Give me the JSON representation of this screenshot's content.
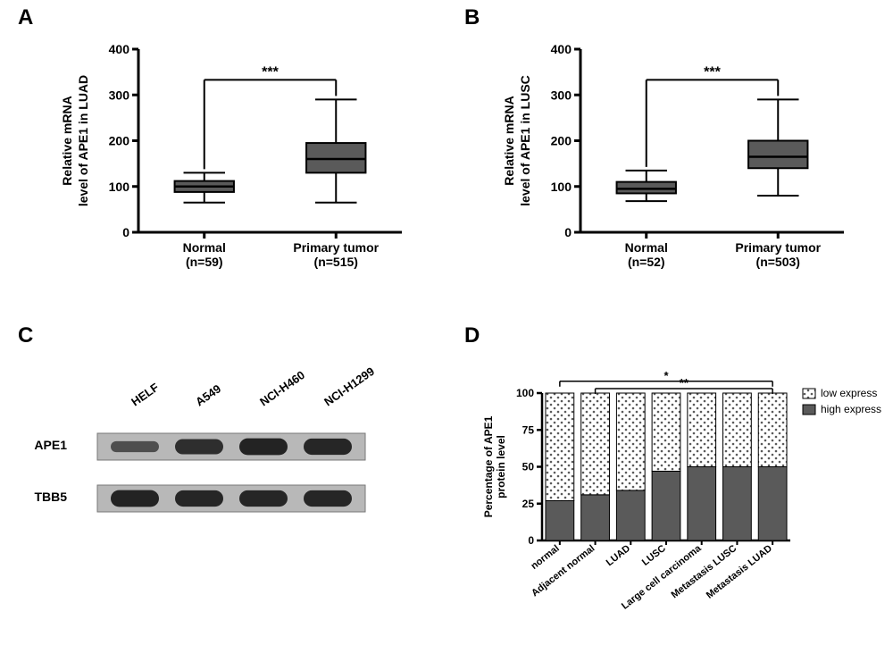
{
  "panel_labels": {
    "A": "A",
    "B": "B",
    "C": "C",
    "D": "D"
  },
  "A": {
    "type": "boxplot",
    "ylabel": "Relative mRNA\nlevel of APE1 in LUAD",
    "ylim": [
      0,
      400
    ],
    "yticks": [
      0,
      100,
      200,
      300,
      400
    ],
    "categories": [
      "Normal\n(n=59)",
      "Primary tumor\n(n=515)"
    ],
    "boxes": [
      {
        "min": 65,
        "q1": 88,
        "median": 100,
        "q3": 112,
        "max": 130,
        "fill": "#5a5a5a"
      },
      {
        "min": 65,
        "q1": 130,
        "median": 160,
        "q3": 195,
        "max": 290,
        "fill": "#5a5a5a"
      }
    ],
    "sig_label": "***",
    "axis_color": "#000000",
    "line_width": 3
  },
  "B": {
    "type": "boxplot",
    "ylabel": "Relative mRNA\nlevel of APE1 in LUSC",
    "ylim": [
      0,
      400
    ],
    "yticks": [
      0,
      100,
      200,
      300,
      400
    ],
    "categories": [
      "Normal\n(n=52)",
      "Primary tumor\n(n=503)"
    ],
    "boxes": [
      {
        "min": 68,
        "q1": 85,
        "median": 95,
        "q3": 110,
        "max": 135,
        "fill": "#5a5a5a"
      },
      {
        "min": 80,
        "q1": 140,
        "median": 165,
        "q3": 200,
        "max": 290,
        "fill": "#5a5a5a"
      }
    ],
    "sig_label": "***",
    "axis_color": "#000000",
    "line_width": 3
  },
  "C": {
    "type": "western_blot",
    "lanes": [
      "HELF",
      "A549",
      "NCI-H460",
      "NCI-H1299"
    ],
    "rows": [
      {
        "label": "APE1",
        "intensity": [
          0.35,
          0.75,
          0.9,
          0.85
        ]
      },
      {
        "label": "TBB5",
        "intensity": [
          0.9,
          0.85,
          0.85,
          0.85
        ]
      }
    ],
    "band_color": "#1a1a1a",
    "background": "#b8b8b8"
  },
  "D": {
    "type": "stacked_bar",
    "ylabel": "Percentage of APE1\nprotein level",
    "ylim": [
      0,
      100
    ],
    "yticks": [
      0,
      25,
      50,
      75,
      100
    ],
    "categories": [
      "normal",
      "Adjacent normal",
      "LUAD",
      "LUSC",
      "Large cell carcinoma",
      "Metastasis LUSC",
      "Metastasis LUAD"
    ],
    "series": [
      {
        "name": "high express",
        "color": "#5a5a5a",
        "pattern": "solid",
        "values": [
          27,
          31,
          34,
          47,
          50,
          50,
          50
        ]
      },
      {
        "name": "low express",
        "color": "#5a5a5a",
        "pattern": "dots",
        "values": [
          73,
          69,
          66,
          53,
          50,
          50,
          50
        ]
      }
    ],
    "legend_items": [
      "low express",
      "high express"
    ],
    "sig": [
      {
        "label": "*",
        "from": 0,
        "to": 6,
        "y": 108
      },
      {
        "label": "**",
        "from": 1,
        "to": 6,
        "y": 103
      }
    ],
    "axis_color": "#000000"
  }
}
